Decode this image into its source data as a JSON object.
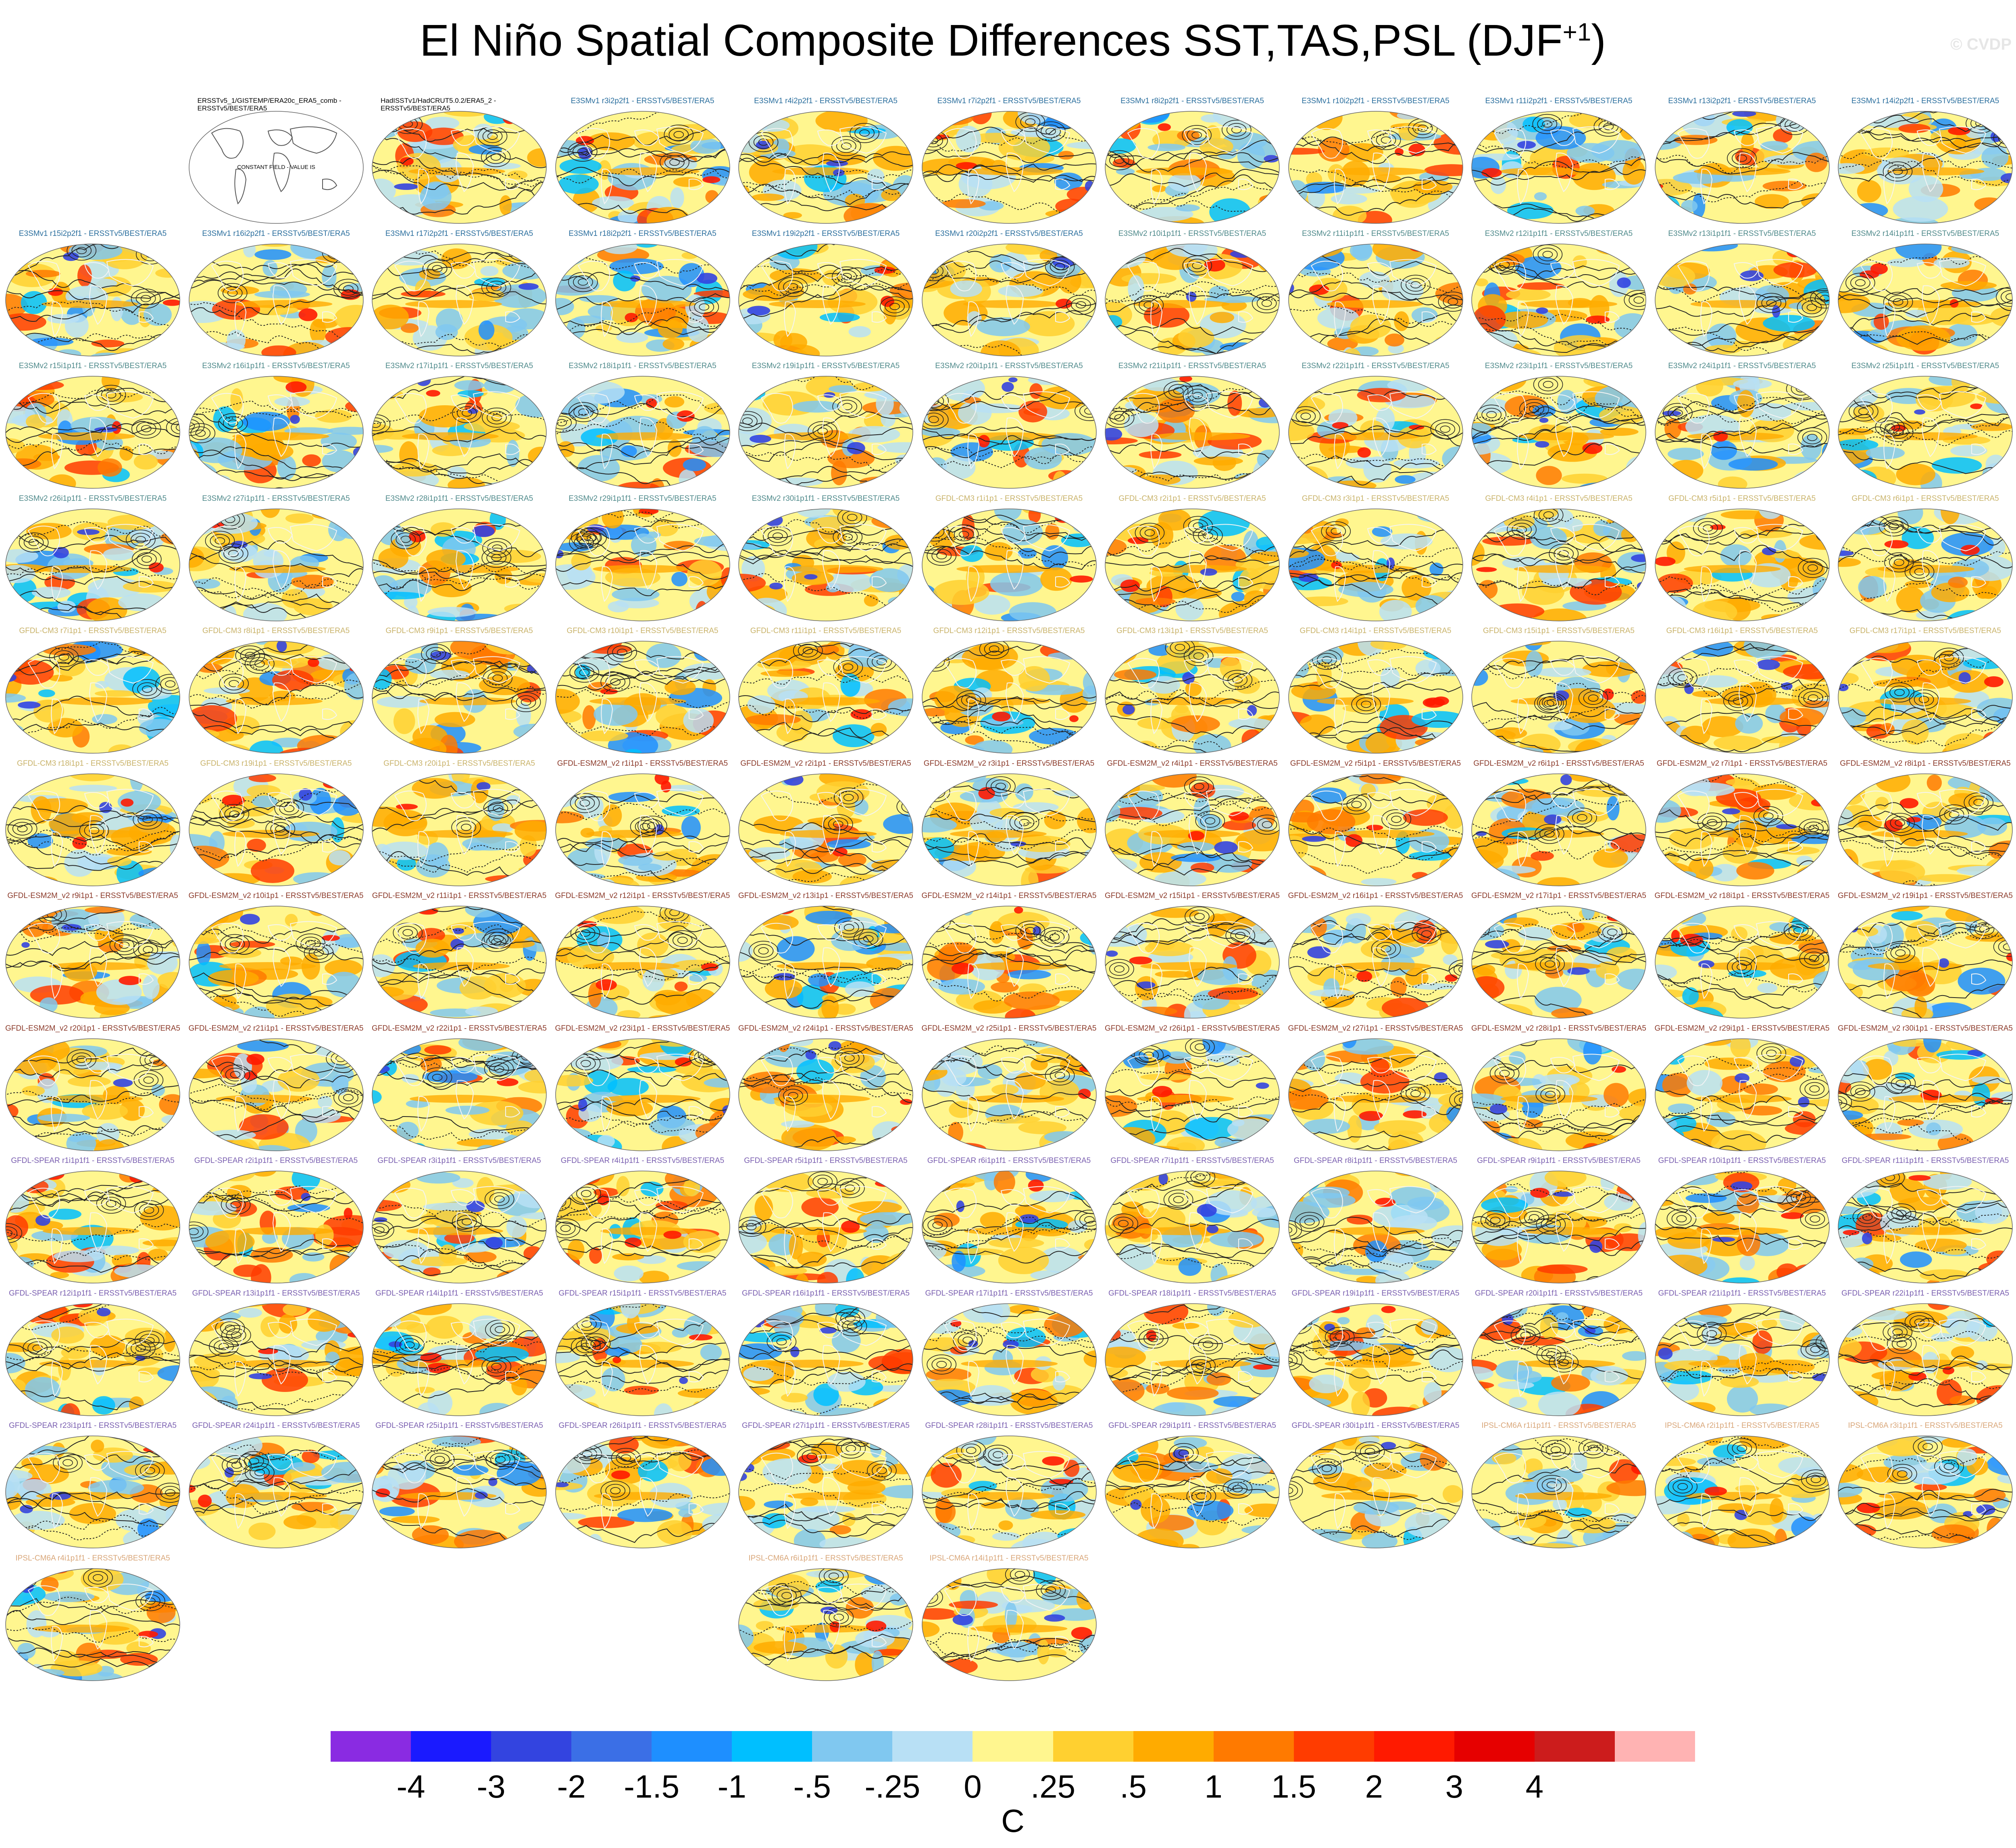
{
  "title": "El Niño Spatial Composite Differences SST,TAS,PSL (DJF",
  "title_superscript": "+1",
  "title_suffix": ")",
  "watermark": "© CVDP",
  "constant_field_note": "CONSTANT FIELD - VALUE IS",
  "panels": [
    {
      "label": "ERSSTv5_1/GISTEMP/ERA20c_ERA5_comb -\nERSSTv5/BEST/ERA5",
      "group": "obs",
      "constant": true
    },
    {
      "label": "HadISSTv1/HadCRUT5.0.2/ERA5_2 -\nERSSTv5/BEST/ERA5",
      "group": "obs"
    },
    {
      "label": "E3SMv1 r3i2p2f1 - ERSSTv5/BEST/ERA5",
      "group": "e3smv1"
    },
    {
      "label": "E3SMv1 r4i2p2f1 - ERSSTv5/BEST/ERA5",
      "group": "e3smv1"
    },
    {
      "label": "E3SMv1 r7i2p2f1 - ERSSTv5/BEST/ERA5",
      "group": "e3smv1"
    },
    {
      "label": "E3SMv1 r8i2p2f1 - ERSSTv5/BEST/ERA5",
      "group": "e3smv1"
    },
    {
      "label": "E3SMv1 r10i2p2f1 - ERSSTv5/BEST/ERA5",
      "group": "e3smv1"
    },
    {
      "label": "E3SMv1 r11i2p2f1 - ERSSTv5/BEST/ERA5",
      "group": "e3smv1"
    },
    {
      "label": "E3SMv1 r13i2p2f1 - ERSSTv5/BEST/ERA5",
      "group": "e3smv1"
    },
    {
      "label": "E3SMv1 r14i2p2f1 - ERSSTv5/BEST/ERA5",
      "group": "e3smv1"
    },
    {
      "label": "E3SMv1 r15i2p2f1 - ERSSTv5/BEST/ERA5",
      "group": "e3smv1"
    },
    {
      "label": "E3SMv1 r16i2p2f1 - ERSSTv5/BEST/ERA5",
      "group": "e3smv1"
    },
    {
      "label": "E3SMv1 r17i2p2f1 - ERSSTv5/BEST/ERA5",
      "group": "e3smv1"
    },
    {
      "label": "E3SMv1 r18i2p2f1 - ERSSTv5/BEST/ERA5",
      "group": "e3smv1"
    },
    {
      "label": "E3SMv1 r19i2p2f1 - ERSSTv5/BEST/ERA5",
      "group": "e3smv1"
    },
    {
      "label": "E3SMv1 r20i2p2f1 - ERSSTv5/BEST/ERA5",
      "group": "e3smv1"
    },
    {
      "label": "E3SMv2 r10i1p1f1 - ERSSTv5/BEST/ERA5",
      "group": "e3smv2"
    },
    {
      "label": "E3SMv2 r11i1p1f1 - ERSSTv5/BEST/ERA5",
      "group": "e3smv2"
    },
    {
      "label": "E3SMv2 r12i1p1f1 - ERSSTv5/BEST/ERA5",
      "group": "e3smv2"
    },
    {
      "label": "E3SMv2 r13i1p1f1 - ERSSTv5/BEST/ERA5",
      "group": "e3smv2"
    },
    {
      "label": "E3SMv2 r14i1p1f1 - ERSSTv5/BEST/ERA5",
      "group": "e3smv2"
    },
    {
      "label": "E3SMv2 r15i1p1f1 - ERSSTv5/BEST/ERA5",
      "group": "e3smv2"
    },
    {
      "label": "E3SMv2 r16i1p1f1 - ERSSTv5/BEST/ERA5",
      "group": "e3smv2"
    },
    {
      "label": "E3SMv2 r17i1p1f1 - ERSSTv5/BEST/ERA5",
      "group": "e3smv2"
    },
    {
      "label": "E3SMv2 r18i1p1f1 - ERSSTv5/BEST/ERA5",
      "group": "e3smv2"
    },
    {
      "label": "E3SMv2 r19i1p1f1 - ERSSTv5/BEST/ERA5",
      "group": "e3smv2"
    },
    {
      "label": "E3SMv2 r20i1p1f1 - ERSSTv5/BEST/ERA5",
      "group": "e3smv2"
    },
    {
      "label": "E3SMv2 r21i1p1f1 - ERSSTv5/BEST/ERA5",
      "group": "e3smv2"
    },
    {
      "label": "E3SMv2 r22i1p1f1 - ERSSTv5/BEST/ERA5",
      "group": "e3smv2"
    },
    {
      "label": "E3SMv2 r23i1p1f1 - ERSSTv5/BEST/ERA5",
      "group": "e3smv2"
    },
    {
      "label": "E3SMv2 r24i1p1f1 - ERSSTv5/BEST/ERA5",
      "group": "e3smv2"
    },
    {
      "label": "E3SMv2 r25i1p1f1 - ERSSTv5/BEST/ERA5",
      "group": "e3smv2"
    },
    {
      "label": "E3SMv2 r26i1p1f1 - ERSSTv5/BEST/ERA5",
      "group": "e3smv2"
    },
    {
      "label": "E3SMv2 r27i1p1f1 - ERSSTv5/BEST/ERA5",
      "group": "e3smv2"
    },
    {
      "label": "E3SMv2 r28i1p1f1 - ERSSTv5/BEST/ERA5",
      "group": "e3smv2"
    },
    {
      "label": "E3SMv2 r29i1p1f1 - ERSSTv5/BEST/ERA5",
      "group": "e3smv2"
    },
    {
      "label": "E3SMv2 r30i1p1f1 - ERSSTv5/BEST/ERA5",
      "group": "e3smv2"
    },
    {
      "label": "GFDL-CM3 r1i1p1 - ERSSTv5/BEST/ERA5",
      "group": "gfdlcm3"
    },
    {
      "label": "GFDL-CM3 r2i1p1 - ERSSTv5/BEST/ERA5",
      "group": "gfdlcm3"
    },
    {
      "label": "GFDL-CM3 r3i1p1 - ERSSTv5/BEST/ERA5",
      "group": "gfdlcm3"
    },
    {
      "label": "GFDL-CM3 r4i1p1 - ERSSTv5/BEST/ERA5",
      "group": "gfdlcm3"
    },
    {
      "label": "GFDL-CM3 r5i1p1 - ERSSTv5/BEST/ERA5",
      "group": "gfdlcm3"
    },
    {
      "label": "GFDL-CM3 r6i1p1 - ERSSTv5/BEST/ERA5",
      "group": "gfdlcm3"
    },
    {
      "label": "GFDL-CM3 r7i1p1 - ERSSTv5/BEST/ERA5",
      "group": "gfdlcm3"
    },
    {
      "label": "GFDL-CM3 r8i1p1 - ERSSTv5/BEST/ERA5",
      "group": "gfdlcm3"
    },
    {
      "label": "GFDL-CM3 r9i1p1 - ERSSTv5/BEST/ERA5",
      "group": "gfdlcm3"
    },
    {
      "label": "GFDL-CM3 r10i1p1 - ERSSTv5/BEST/ERA5",
      "group": "gfdlcm3"
    },
    {
      "label": "GFDL-CM3 r11i1p1 - ERSSTv5/BEST/ERA5",
      "group": "gfdlcm3"
    },
    {
      "label": "GFDL-CM3 r12i1p1 - ERSSTv5/BEST/ERA5",
      "group": "gfdlcm3"
    },
    {
      "label": "GFDL-CM3 r13i1p1 - ERSSTv5/BEST/ERA5",
      "group": "gfdlcm3"
    },
    {
      "label": "GFDL-CM3 r14i1p1 - ERSSTv5/BEST/ERA5",
      "group": "gfdlcm3"
    },
    {
      "label": "GFDL-CM3 r15i1p1 - ERSSTv5/BEST/ERA5",
      "group": "gfdlcm3"
    },
    {
      "label": "GFDL-CM3 r16i1p1 - ERSSTv5/BEST/ERA5",
      "group": "gfdlcm3"
    },
    {
      "label": "GFDL-CM3 r17i1p1 - ERSSTv5/BEST/ERA5",
      "group": "gfdlcm3"
    },
    {
      "label": "GFDL-CM3 r18i1p1 - ERSSTv5/BEST/ERA5",
      "group": "gfdlcm3"
    },
    {
      "label": "GFDL-CM3 r19i1p1 - ERSSTv5/BEST/ERA5",
      "group": "gfdlcm3"
    },
    {
      "label": "GFDL-CM3 r20i1p1 - ERSSTv5/BEST/ERA5",
      "group": "gfdlcm3"
    },
    {
      "label": "GFDL-ESM2M_v2 r1i1p1 - ERSSTv5/BEST/ERA5",
      "group": "gfdlesm2m"
    },
    {
      "label": "GFDL-ESM2M_v2 r2i1p1 - ERSSTv5/BEST/ERA5",
      "group": "gfdlesm2m"
    },
    {
      "label": "GFDL-ESM2M_v2 r3i1p1 - ERSSTv5/BEST/ERA5",
      "group": "gfdlesm2m"
    },
    {
      "label": "GFDL-ESM2M_v2 r4i1p1 - ERSSTv5/BEST/ERA5",
      "group": "gfdlesm2m"
    },
    {
      "label": "GFDL-ESM2M_v2 r5i1p1 - ERSSTv5/BEST/ERA5",
      "group": "gfdlesm2m"
    },
    {
      "label": "GFDL-ESM2M_v2 r6i1p1 - ERSSTv5/BEST/ERA5",
      "group": "gfdlesm2m"
    },
    {
      "label": "GFDL-ESM2M_v2 r7i1p1 - ERSSTv5/BEST/ERA5",
      "group": "gfdlesm2m"
    },
    {
      "label": "GFDL-ESM2M_v2 r8i1p1 - ERSSTv5/BEST/ERA5",
      "group": "gfdlesm2m"
    },
    {
      "label": "GFDL-ESM2M_v2 r9i1p1 - ERSSTv5/BEST/ERA5",
      "group": "gfdlesm2m"
    },
    {
      "label": "GFDL-ESM2M_v2 r10i1p1 - ERSSTv5/BEST/ERA5",
      "group": "gfdlesm2m"
    },
    {
      "label": "GFDL-ESM2M_v2 r11i1p1 - ERSSTv5/BEST/ERA5",
      "group": "gfdlesm2m"
    },
    {
      "label": "GFDL-ESM2M_v2 r12i1p1 - ERSSTv5/BEST/ERA5",
      "group": "gfdlesm2m"
    },
    {
      "label": "GFDL-ESM2M_v2 r13i1p1 - ERSSTv5/BEST/ERA5",
      "group": "gfdlesm2m"
    },
    {
      "label": "GFDL-ESM2M_v2 r14i1p1 - ERSSTv5/BEST/ERA5",
      "group": "gfdlesm2m"
    },
    {
      "label": "GFDL-ESM2M_v2 r15i1p1 - ERSSTv5/BEST/ERA5",
      "group": "gfdlesm2m"
    },
    {
      "label": "GFDL-ESM2M_v2 r16i1p1 - ERSSTv5/BEST/ERA5",
      "group": "gfdlesm2m"
    },
    {
      "label": "GFDL-ESM2M_v2 r17i1p1 - ERSSTv5/BEST/ERA5",
      "group": "gfdlesm2m"
    },
    {
      "label": "GFDL-ESM2M_v2 r18i1p1 - ERSSTv5/BEST/ERA5",
      "group": "gfdlesm2m"
    },
    {
      "label": "GFDL-ESM2M_v2 r19i1p1 - ERSSTv5/BEST/ERA5",
      "group": "gfdlesm2m"
    },
    {
      "label": "GFDL-ESM2M_v2 r20i1p1 - ERSSTv5/BEST/ERA5",
      "group": "gfdlesm2m"
    },
    {
      "label": "GFDL-ESM2M_v2 r21i1p1 - ERSSTv5/BEST/ERA5",
      "group": "gfdlesm2m"
    },
    {
      "label": "GFDL-ESM2M_v2 r22i1p1 - ERSSTv5/BEST/ERA5",
      "group": "gfdlesm2m"
    },
    {
      "label": "GFDL-ESM2M_v2 r23i1p1 - ERSSTv5/BEST/ERA5",
      "group": "gfdlesm2m"
    },
    {
      "label": "GFDL-ESM2M_v2 r24i1p1 - ERSSTv5/BEST/ERA5",
      "group": "gfdlesm2m"
    },
    {
      "label": "GFDL-ESM2M_v2 r25i1p1 - ERSSTv5/BEST/ERA5",
      "group": "gfdlesm2m"
    },
    {
      "label": "GFDL-ESM2M_v2 r26i1p1 - ERSSTv5/BEST/ERA5",
      "group": "gfdlesm2m"
    },
    {
      "label": "GFDL-ESM2M_v2 r27i1p1 - ERSSTv5/BEST/ERA5",
      "group": "gfdlesm2m"
    },
    {
      "label": "GFDL-ESM2M_v2 r28i1p1 - ERSSTv5/BEST/ERA5",
      "group": "gfdlesm2m"
    },
    {
      "label": "GFDL-ESM2M_v2 r29i1p1 - ERSSTv5/BEST/ERA5",
      "group": "gfdlesm2m"
    },
    {
      "label": "GFDL-ESM2M_v2 r30i1p1 - ERSSTv5/BEST/ERA5",
      "group": "gfdlesm2m"
    },
    {
      "label": "GFDL-SPEAR r1i1p1f1 - ERSSTv5/BEST/ERA5",
      "group": "gfdlspear"
    },
    {
      "label": "GFDL-SPEAR r2i1p1f1 - ERSSTv5/BEST/ERA5",
      "group": "gfdlspear"
    },
    {
      "label": "GFDL-SPEAR r3i1p1f1 - ERSSTv5/BEST/ERA5",
      "group": "gfdlspear"
    },
    {
      "label": "GFDL-SPEAR r4i1p1f1 - ERSSTv5/BEST/ERA5",
      "group": "gfdlspear"
    },
    {
      "label": "GFDL-SPEAR r5i1p1f1 - ERSSTv5/BEST/ERA5",
      "group": "gfdlspear"
    },
    {
      "label": "GFDL-SPEAR r6i1p1f1 - ERSSTv5/BEST/ERA5",
      "group": "gfdlspear"
    },
    {
      "label": "GFDL-SPEAR r7i1p1f1 - ERSSTv5/BEST/ERA5",
      "group": "gfdlspear"
    },
    {
      "label": "GFDL-SPEAR r8i1p1f1 - ERSSTv5/BEST/ERA5",
      "group": "gfdlspear"
    },
    {
      "label": "GFDL-SPEAR r9i1p1f1 - ERSSTv5/BEST/ERA5",
      "group": "gfdlspear"
    },
    {
      "label": "GFDL-SPEAR r10i1p1f1 - ERSSTv5/BEST/ERA5",
      "group": "gfdlspear"
    },
    {
      "label": "GFDL-SPEAR r11i1p1f1 - ERSSTv5/BEST/ERA5",
      "group": "gfdlspear"
    },
    {
      "label": "GFDL-SPEAR r12i1p1f1 - ERSSTv5/BEST/ERA5",
      "group": "gfdlspear"
    },
    {
      "label": "GFDL-SPEAR r13i1p1f1 - ERSSTv5/BEST/ERA5",
      "group": "gfdlspear"
    },
    {
      "label": "GFDL-SPEAR r14i1p1f1 - ERSSTv5/BEST/ERA5",
      "group": "gfdlspear"
    },
    {
      "label": "GFDL-SPEAR r15i1p1f1 - ERSSTv5/BEST/ERA5",
      "group": "gfdlspear"
    },
    {
      "label": "GFDL-SPEAR r16i1p1f1 - ERSSTv5/BEST/ERA5",
      "group": "gfdlspear"
    },
    {
      "label": "GFDL-SPEAR r17i1p1f1 - ERSSTv5/BEST/ERA5",
      "group": "gfdlspear"
    },
    {
      "label": "GFDL-SPEAR r18i1p1f1 - ERSSTv5/BEST/ERA5",
      "group": "gfdlspear"
    },
    {
      "label": "GFDL-SPEAR r19i1p1f1 - ERSSTv5/BEST/ERA5",
      "group": "gfdlspear"
    },
    {
      "label": "GFDL-SPEAR r20i1p1f1 - ERSSTv5/BEST/ERA5",
      "group": "gfdlspear"
    },
    {
      "label": "GFDL-SPEAR r21i1p1f1 - ERSSTv5/BEST/ERA5",
      "group": "gfdlspear"
    },
    {
      "label": "GFDL-SPEAR r22i1p1f1 - ERSSTv5/BEST/ERA5",
      "group": "gfdlspear"
    },
    {
      "label": "GFDL-SPEAR r23i1p1f1 - ERSSTv5/BEST/ERA5",
      "group": "gfdlspear"
    },
    {
      "label": "GFDL-SPEAR r24i1p1f1 - ERSSTv5/BEST/ERA5",
      "group": "gfdlspear"
    },
    {
      "label": "GFDL-SPEAR r25i1p1f1 - ERSSTv5/BEST/ERA5",
      "group": "gfdlspear"
    },
    {
      "label": "GFDL-SPEAR r26i1p1f1 - ERSSTv5/BEST/ERA5",
      "group": "gfdlspear"
    },
    {
      "label": "GFDL-SPEAR r27i1p1f1 - ERSSTv5/BEST/ERA5",
      "group": "gfdlspear"
    },
    {
      "label": "GFDL-SPEAR r28i1p1f1 - ERSSTv5/BEST/ERA5",
      "group": "gfdlspear"
    },
    {
      "label": "GFDL-SPEAR r29i1p1f1 - ERSSTv5/BEST/ERA5",
      "group": "gfdlspear"
    },
    {
      "label": "GFDL-SPEAR r30i1p1f1 - ERSSTv5/BEST/ERA5",
      "group": "gfdlspear"
    },
    {
      "label": "IPSL-CM6A r1i1p1f1 - ERSSTv5/BEST/ERA5",
      "group": "ipsl"
    },
    {
      "label": "IPSL-CM6A r2i1p1f1 - ERSSTv5/BEST/ERA5",
      "group": "ipsl"
    },
    {
      "label": "IPSL-CM6A r3i1p1f1 - ERSSTv5/BEST/ERA5",
      "group": "ipsl"
    },
    {
      "label": "IPSL-CM6A r4i1p1f1 - ERSSTv5/BEST/ERA5",
      "group": "ipsl"
    },
    {
      "label": "IPSL-CM6A r6i1p1f1 - ERSSTv5/BEST/ERA5",
      "group": "ipsl"
    },
    {
      "label": "IPSL-CM6A r14i1p1f1 - ERSSTv5/BEST/ERA5",
      "group": "ipsl"
    }
  ],
  "group_colors": {
    "obs": "#000000",
    "e3smv1": "#2b6f9e",
    "e3smv2": "#4f8a8b",
    "gfdlcm3": "#c9b36a",
    "gfdlesm2m": "#8b3a2a",
    "gfdlspear": "#7a5fb0",
    "ipsl": "#d9a77a"
  },
  "colorbar": {
    "colors": [
      "#8a2be2",
      "#1a1aff",
      "#3344e0",
      "#3b6fe6",
      "#1e8fff",
      "#00bfff",
      "#80c8f0",
      "#b8e0f5",
      "#fff68f",
      "#ffd030",
      "#ffab00",
      "#ff7a00",
      "#ff3c00",
      "#ff1a00",
      "#e60000",
      "#cc1c1c",
      "#ffb3b3"
    ],
    "tick_labels": [
      "-4",
      "-3",
      "-2",
      "-1.5",
      "-1",
      "-.5",
      "-.25",
      "0",
      ".25",
      ".5",
      "1",
      "1.5",
      "2",
      "3",
      "4"
    ],
    "unit": "C"
  }
}
